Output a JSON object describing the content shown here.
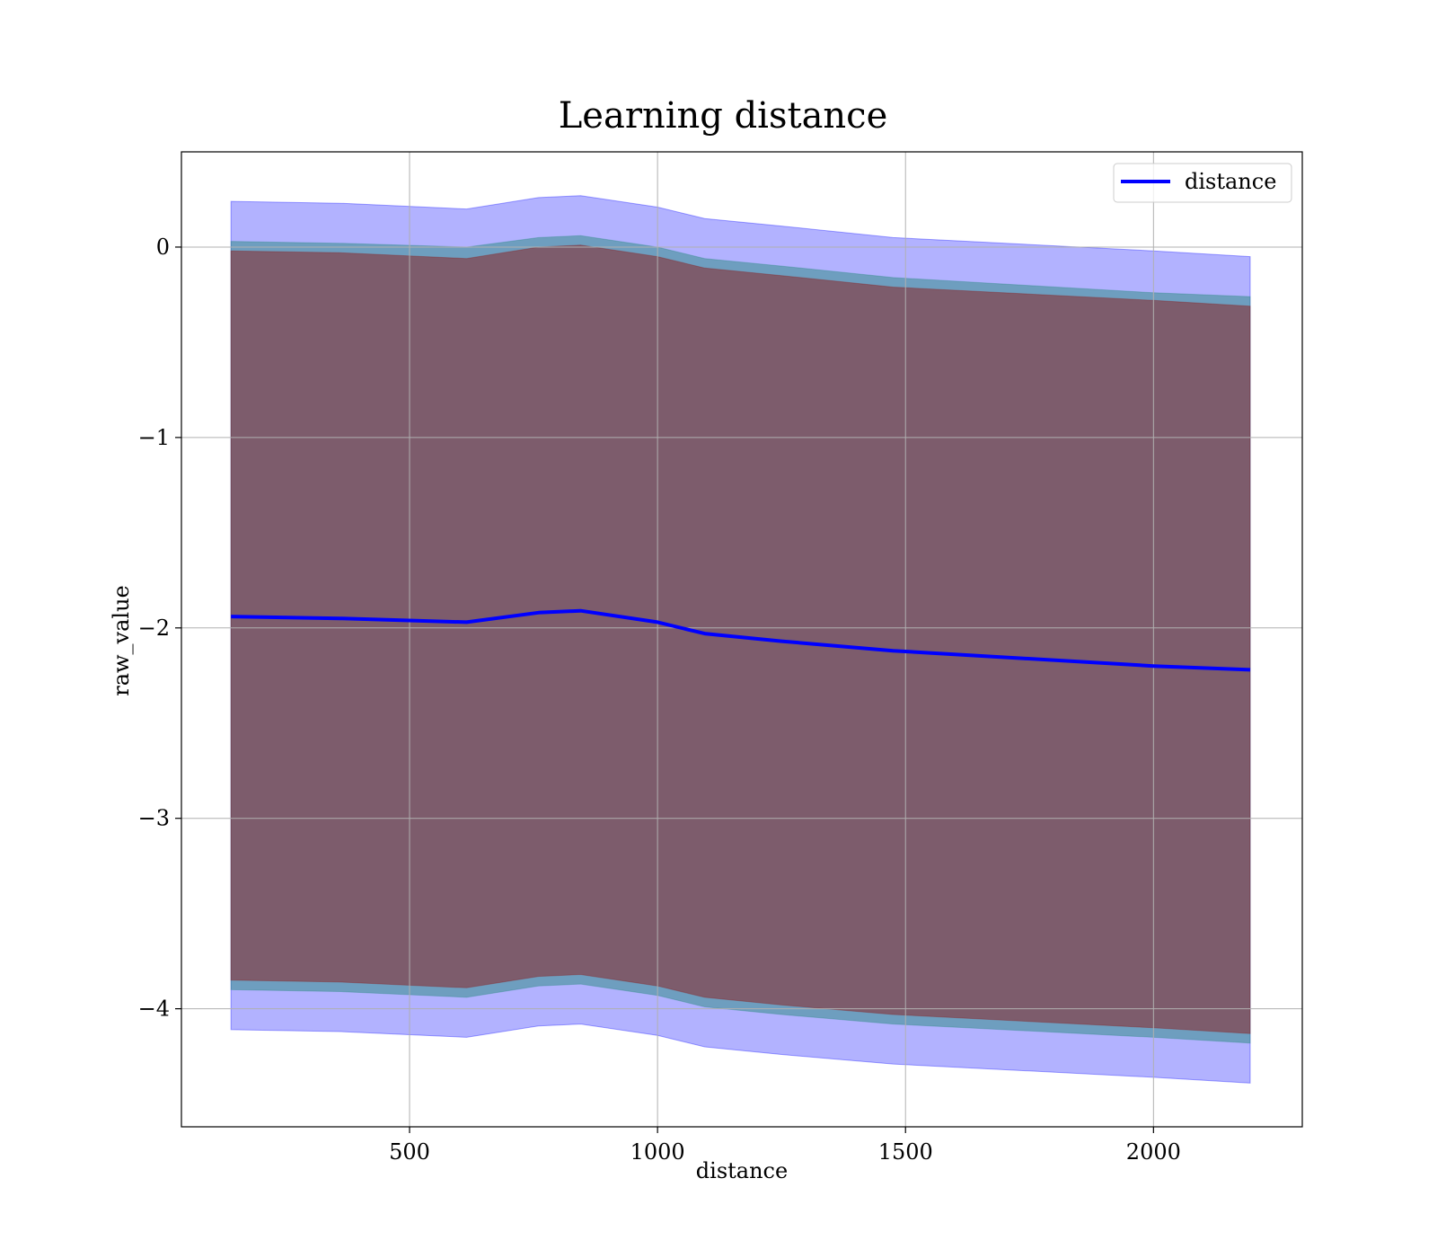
{
  "chart_data": {
    "type": "area",
    "title": "Learning distance",
    "xlabel": "distance",
    "ylabel": "raw_value",
    "xlim": [
      40,
      2300
    ],
    "ylim": [
      -4.62,
      0.5
    ],
    "x_ticks": [
      500,
      1000,
      1500,
      2000
    ],
    "x_tick_labels": [
      "500",
      "1000",
      "1500",
      "2000"
    ],
    "y_ticks": [
      0,
      -1,
      -2,
      -3,
      -4
    ],
    "y_tick_labels": [
      "0",
      "−1",
      "−2",
      "−3",
      "−4"
    ],
    "grid": true,
    "legend_position": "upper right",
    "x": [
      140,
      360,
      615,
      760,
      845,
      1000,
      1095,
      1250,
      1475,
      2000,
      2195
    ],
    "series": [
      {
        "name": "distance",
        "kind": "line",
        "color": "#0000ff",
        "values": [
          -1.94,
          -1.95,
          -1.97,
          -1.92,
          -1.91,
          -1.97,
          -2.03,
          -2.07,
          -2.12,
          -2.2,
          -2.22
        ]
      }
    ],
    "bands": [
      {
        "role": "outer",
        "color": "#0000ff",
        "opacity": 0.3,
        "upper": [
          0.24,
          0.23,
          0.2,
          0.26,
          0.27,
          0.21,
          0.15,
          0.11,
          0.05,
          -0.02,
          -0.05
        ],
        "lower": [
          -4.11,
          -4.12,
          -4.15,
          -4.09,
          -4.08,
          -4.14,
          -4.2,
          -4.24,
          -4.29,
          -4.36,
          -4.39
        ]
      },
      {
        "role": "middle",
        "color": "#2a8a80",
        "opacity": 0.5,
        "upper": [
          0.03,
          0.02,
          0.0,
          0.05,
          0.06,
          0.0,
          -0.06,
          -0.1,
          -0.16,
          -0.24,
          -0.26
        ],
        "lower": [
          -3.9,
          -3.91,
          -3.94,
          -3.88,
          -3.87,
          -3.93,
          -3.99,
          -4.03,
          -4.08,
          -4.15,
          -4.18
        ]
      },
      {
        "role": "inner",
        "color": "#8b1a1a",
        "opacity": 0.5,
        "upper": [
          -0.02,
          -0.03,
          -0.06,
          0.0,
          0.01,
          -0.05,
          -0.11,
          -0.15,
          -0.21,
          -0.28,
          -0.31
        ],
        "lower": [
          -3.85,
          -3.86,
          -3.89,
          -3.83,
          -3.82,
          -3.88,
          -3.94,
          -3.98,
          -4.03,
          -4.1,
          -4.13
        ]
      }
    ]
  }
}
